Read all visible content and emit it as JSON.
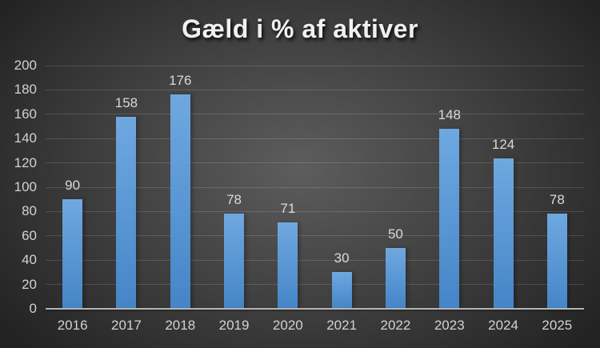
{
  "chart_data": {
    "type": "bar",
    "title": "Gæld i % af aktiver",
    "categories": [
      "2016",
      "2017",
      "2018",
      "2019",
      "2020",
      "2021",
      "2022",
      "2023",
      "2024",
      "2025"
    ],
    "values": [
      90,
      158,
      176,
      78,
      71,
      30,
      50,
      148,
      124,
      78
    ],
    "xlabel": "",
    "ylabel": "",
    "ylim": [
      0,
      200
    ],
    "yticks": [
      0,
      20,
      40,
      60,
      80,
      100,
      120,
      140,
      160,
      180,
      200
    ],
    "grid": true,
    "legend": false,
    "data_labels": true,
    "colors": {
      "bar_gradient_top": "#6FA8E0",
      "bar_gradient_bottom": "#4585C7",
      "title_text": "#F0F0F0",
      "tick_label": "#D2D2D2",
      "data_label": "#D9D9D9",
      "gridline": "rgba(255,255,255,0.14)",
      "axis_line": "#B5B5B5",
      "background_center": "#5D5D5D",
      "background_mid": "#3E3E3E",
      "background_edge": "#232323"
    }
  }
}
